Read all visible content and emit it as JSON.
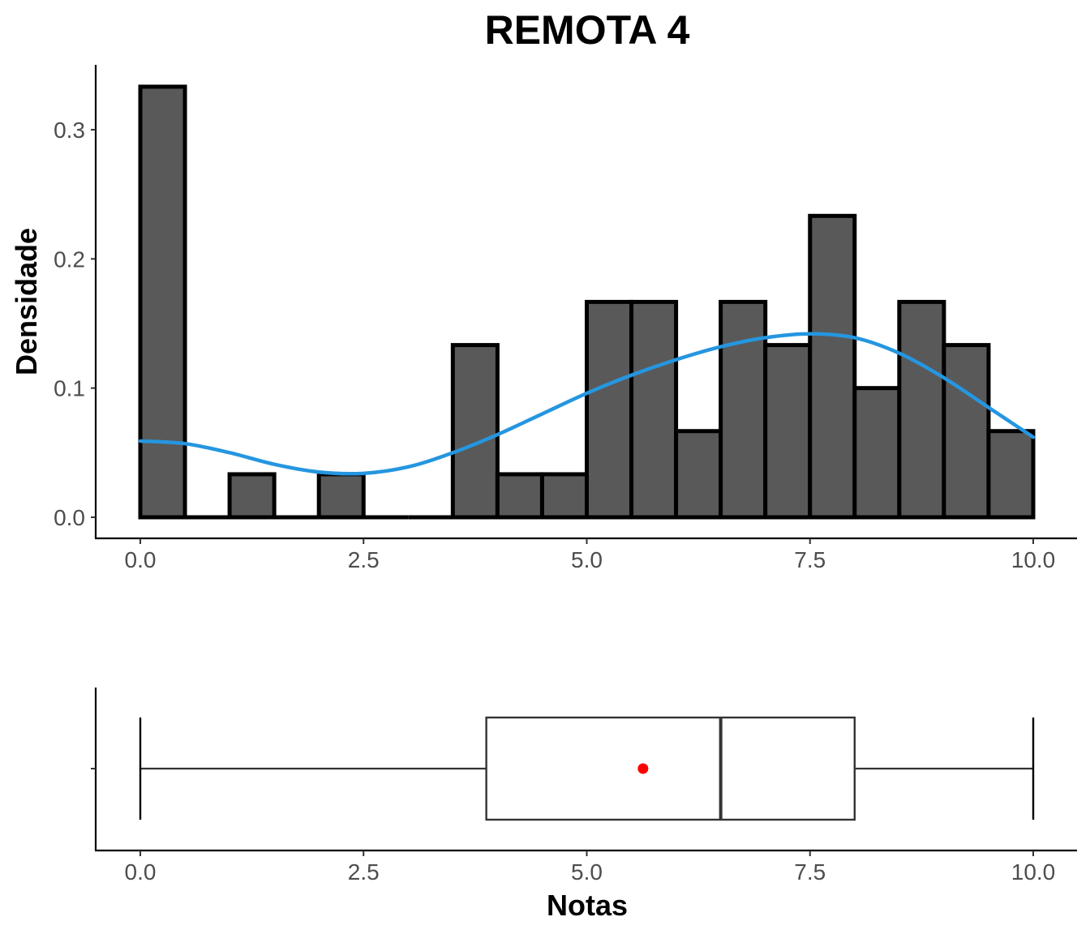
{
  "chart_data": [
    {
      "type": "bar",
      "title": "REMOTA 4",
      "xlabel": "",
      "ylabel": "Densidade",
      "xlim": [
        -0.5,
        10.5
      ],
      "ylim": [
        -0.015,
        0.35
      ],
      "x_ticks": [
        "0.0",
        "2.5",
        "5.0",
        "7.5",
        "10.0"
      ],
      "x_tick_values": [
        0,
        2.5,
        5,
        7.5,
        10
      ],
      "y_ticks": [
        "0.0",
        "0.1",
        "0.2",
        "0.3"
      ],
      "y_tick_values": [
        0,
        0.1,
        0.2,
        0.3
      ],
      "bin_width": 0.5,
      "bins": [
        {
          "start": 0.0,
          "end": 0.5,
          "density": 0.3333
        },
        {
          "start": 0.5,
          "end": 1.0,
          "density": 0.0
        },
        {
          "start": 1.0,
          "end": 1.5,
          "density": 0.0333
        },
        {
          "start": 1.5,
          "end": 2.0,
          "density": 0.0
        },
        {
          "start": 2.0,
          "end": 2.5,
          "density": 0.0333
        },
        {
          "start": 2.5,
          "end": 3.0,
          "density": 0.0
        },
        {
          "start": 3.0,
          "end": 3.5,
          "density": 0.0
        },
        {
          "start": 3.5,
          "end": 4.0,
          "density": 0.1333
        },
        {
          "start": 4.0,
          "end": 4.5,
          "density": 0.0333
        },
        {
          "start": 4.5,
          "end": 5.0,
          "density": 0.0333
        },
        {
          "start": 5.0,
          "end": 5.5,
          "density": 0.1667
        },
        {
          "start": 5.5,
          "end": 6.0,
          "density": 0.1667
        },
        {
          "start": 6.0,
          "end": 6.5,
          "density": 0.0667
        },
        {
          "start": 6.5,
          "end": 7.0,
          "density": 0.1667
        },
        {
          "start": 7.0,
          "end": 7.5,
          "density": 0.1333
        },
        {
          "start": 7.5,
          "end": 8.0,
          "density": 0.2333
        },
        {
          "start": 8.0,
          "end": 8.5,
          "density": 0.1
        },
        {
          "start": 8.5,
          "end": 9.0,
          "density": 0.1667
        },
        {
          "start": 9.0,
          "end": 9.5,
          "density": 0.1333
        },
        {
          "start": 9.5,
          "end": 10.0,
          "density": 0.0667
        }
      ],
      "density_curve": {
        "x": [
          0,
          0.5,
          1,
          1.5,
          2,
          2.5,
          3,
          3.5,
          4,
          4.5,
          5,
          5.5,
          6,
          6.5,
          7,
          7.5,
          8,
          8.5,
          9,
          9.5,
          10
        ],
        "y": [
          0.059,
          0.057,
          0.05,
          0.041,
          0.035,
          0.034,
          0.039,
          0.05,
          0.064,
          0.08,
          0.096,
          0.11,
          0.122,
          0.132,
          0.139,
          0.142,
          0.139,
          0.127,
          0.108,
          0.085,
          0.062
        ]
      },
      "bar_fill": "#595959",
      "bar_stroke": "#000000",
      "curve_color": "#2596e0"
    },
    {
      "type": "boxplot",
      "xlabel": "Notas",
      "xlim": [
        -0.5,
        10.5
      ],
      "x_ticks": [
        "0.0",
        "2.5",
        "5.0",
        "7.5",
        "10.0"
      ],
      "x_tick_values": [
        0,
        2.5,
        5,
        7.5,
        10
      ],
      "min": 0.0,
      "q1": 3.875,
      "median": 6.5,
      "q3": 8.0,
      "max": 10.0,
      "mean": 5.63,
      "mean_color": "#ff0000",
      "box_stroke": "#333333"
    }
  ]
}
